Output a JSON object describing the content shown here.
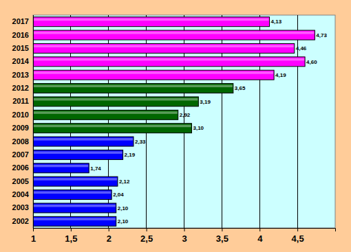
{
  "chart_data": {
    "type": "bar",
    "orientation": "horizontal",
    "categories": [
      "2002",
      "2003",
      "2004",
      "2005",
      "2006",
      "2007",
      "2008",
      "2009",
      "2010",
      "2011",
      "2012",
      "2013",
      "2014",
      "2015",
      "2016",
      "2017"
    ],
    "values": [
      2.1,
      2.1,
      2.04,
      2.12,
      1.74,
      2.19,
      2.33,
      3.1,
      2.92,
      3.19,
      3.65,
      4.19,
      4.6,
      4.46,
      4.73,
      4.13
    ],
    "value_labels": [
      "2,10",
      "2,10",
      "2,04",
      "2,12",
      "1,74",
      "2,19",
      "2,33",
      "3,10",
      "2,92",
      "3,19",
      "3,65",
      "4,19",
      "4,60",
      "4,46",
      "4,73",
      "4,13"
    ],
    "colors": [
      "#0000ff",
      "#0000ff",
      "#0000ff",
      "#0000ff",
      "#0000ff",
      "#0000ff",
      "#0000ff",
      "#006600",
      "#006600",
      "#006600",
      "#006600",
      "#ff00ff",
      "#ff00ff",
      "#ff00ff",
      "#ff00ff",
      "#ff00ff"
    ],
    "xlim": [
      1,
      5
    ],
    "xticks": [
      1,
      {
        "value": 1.5,
        "label": "1,5"
      },
      2,
      {
        "value": 2.5,
        "label": "2,5"
      },
      3,
      {
        "value": 3.5,
        "label": "3,5"
      },
      4,
      {
        "value": 4.5,
        "label": "4,5"
      }
    ],
    "grid": true,
    "data_labels": true
  }
}
